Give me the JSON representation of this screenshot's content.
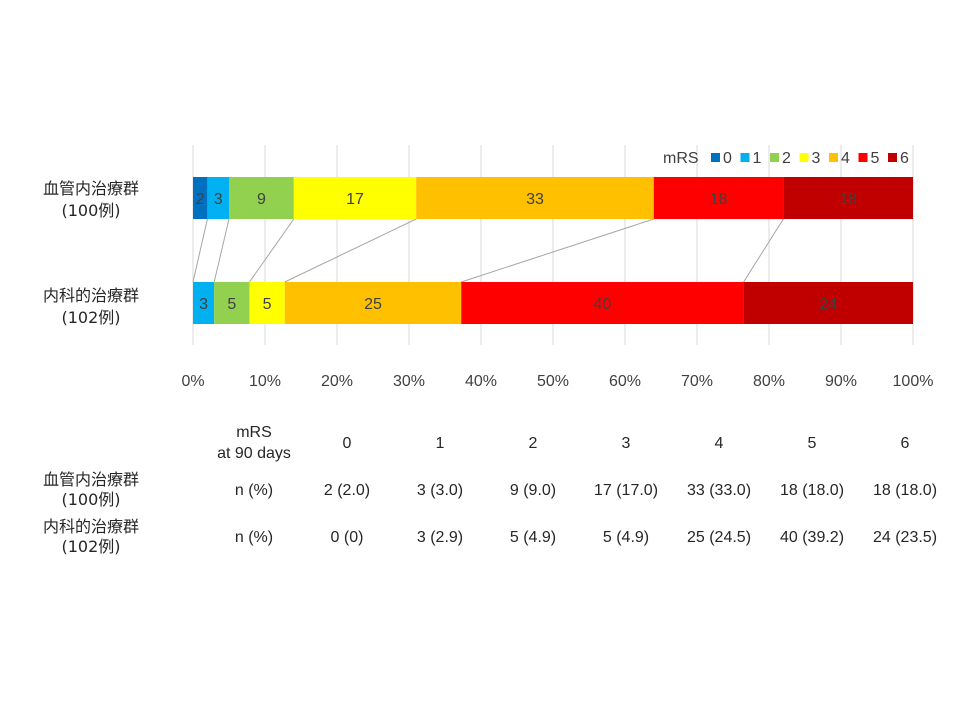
{
  "chart_data": {
    "type": "bar",
    "orientation": "horizontal",
    "stacked": true,
    "normalized": true,
    "categories": [
      "血管内治療群\n(100例)",
      "内科的治療群\n(102例)"
    ],
    "category_lines": [
      [
        "血管内治療群",
        "(100例)"
      ],
      [
        "内科的治療群",
        "(102例)"
      ]
    ],
    "series": [
      {
        "name": "0",
        "color": "#0070C0",
        "values": [
          2,
          0
        ]
      },
      {
        "name": "1",
        "color": "#00B0F0",
        "values": [
          3,
          3
        ]
      },
      {
        "name": "2",
        "color": "#92D050",
        "values": [
          9,
          5
        ]
      },
      {
        "name": "3",
        "color": "#FFFF00",
        "values": [
          17,
          5
        ]
      },
      {
        "name": "4",
        "color": "#FFC000",
        "values": [
          33,
          25
        ]
      },
      {
        "name": "5",
        "color": "#FF0000",
        "values": [
          18,
          40
        ]
      },
      {
        "name": "6",
        "color": "#C00000",
        "values": [
          18,
          24
        ]
      }
    ],
    "xlim": [
      0,
      100
    ],
    "x_ticks": [
      "0%",
      "10%",
      "20%",
      "30%",
      "40%",
      "50%",
      "60%",
      "70%",
      "80%",
      "90%",
      "100%"
    ],
    "legend": {
      "title": "mRS",
      "position": "top-right"
    },
    "grid": "vertical",
    "series_connector_lines": true,
    "data_labels": true
  },
  "table": {
    "header_lines": [
      "mRS",
      "at 90 days"
    ],
    "columns": [
      "0",
      "1",
      "2",
      "3",
      "4",
      "5",
      "6"
    ],
    "rows": [
      {
        "group_lines": [
          "血管内治療群",
          "(100例)"
        ],
        "stat": "n (%)",
        "cells": [
          "2 (2.0)",
          "3 (3.0)",
          "9 (9.0)",
          "17 (17.0)",
          "33 (33.0)",
          "18 (18.0)",
          "18 (18.0)"
        ]
      },
      {
        "group_lines": [
          "内科的治療群",
          "(102例)"
        ],
        "stat": "n (%)",
        "cells": [
          "0 (0)",
          "3 (2.9)",
          "5 (4.9)",
          "5 (4.9)",
          "25 (24.5)",
          "40 (39.2)",
          "24 (23.5)"
        ]
      }
    ]
  }
}
